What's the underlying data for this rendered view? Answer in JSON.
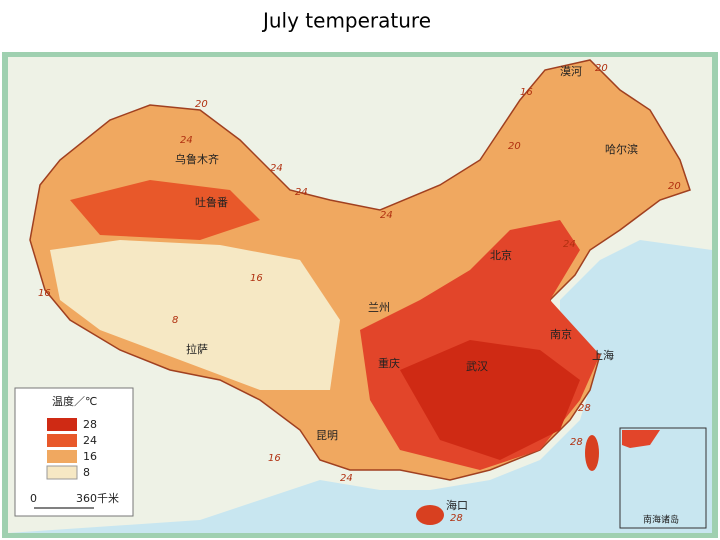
{
  "header": {
    "title": "July temperature"
  },
  "map": {
    "cities": [
      "漠河",
      "哈尔滨",
      "乌鲁木齐",
      "吐鲁番",
      "北京",
      "兰州",
      "拉萨",
      "南京",
      "上海",
      "武汉",
      "重庆",
      "昆明",
      "海口"
    ],
    "isotherm_labels": [
      "20",
      "16",
      "20",
      "24",
      "24",
      "20",
      "24",
      "24",
      "16",
      "8",
      "16",
      "28",
      "28",
      "24",
      "28",
      "24",
      "20",
      "16"
    ],
    "legend": {
      "title": "温度／℃",
      "items": [
        28,
        24,
        16,
        8
      ]
    },
    "scale": {
      "start": "0",
      "end": "360千米"
    },
    "inset": "南海诸岛"
  }
}
